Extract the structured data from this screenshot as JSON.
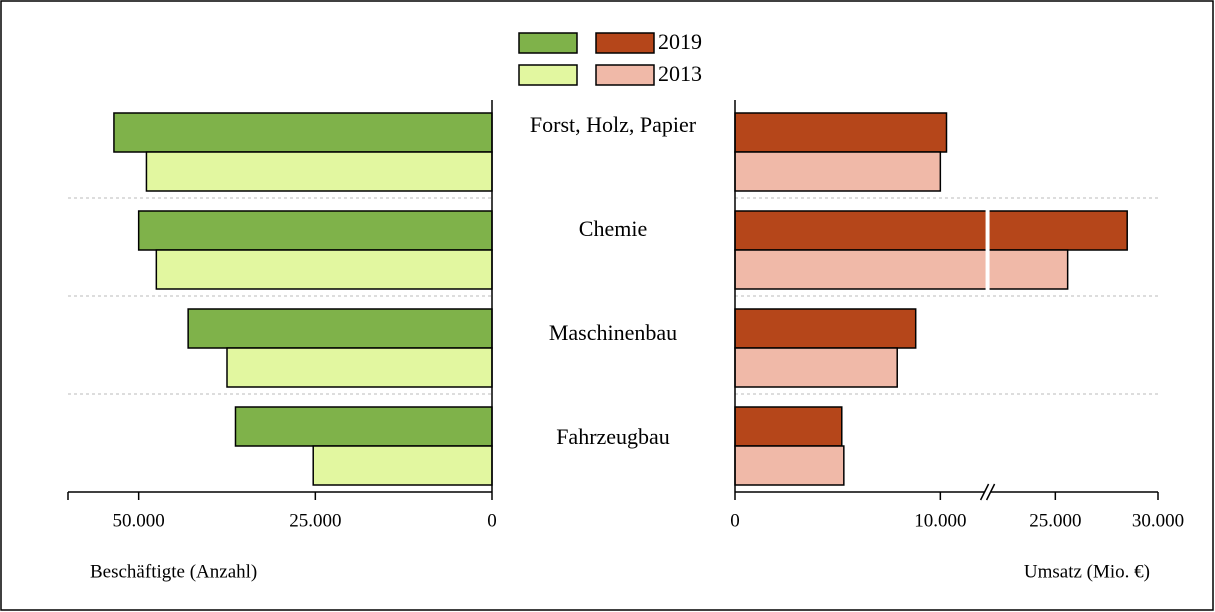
{
  "chart_data": [
    {
      "type": "bar",
      "orientation": "horizontal",
      "reversed": true,
      "categories": [
        "Forst, Holz, Papier",
        "Chemie",
        "Maschinenbau",
        "Fahrzeugbau"
      ],
      "series": [
        {
          "color": "#7fb24a",
          "values": [
            53500,
            50000,
            43000,
            36300
          ]
        },
        {
          "color": "#e2f7a0",
          "values": [
            48900,
            47500,
            37500,
            25300
          ]
        }
      ],
      "xlabel": "Beschäftigte (Anzahl)",
      "xlim": [
        0,
        60000
      ],
      "xticks": [
        0,
        {
          "value": 25000,
          "label": "25.000"
        },
        {
          "value": 50000,
          "label": "50.000"
        }
      ],
      "grid": true
    },
    {
      "type": "bar",
      "orientation": "horizontal",
      "series": [
        {
          "name": "2019",
          "color": "#b5461a",
          "values": [
            10300,
            28500,
            8800,
            5200
          ]
        },
        {
          "name": "2013",
          "color": "#f0b9a8",
          "values": [
            10000,
            25600,
            7900,
            5300
          ]
        }
      ],
      "xlabel": "Umsatz (Mio. €)",
      "xlim": [
        0,
        30000
      ],
      "axis_break": [
        12300,
        21700
      ],
      "xticks": [
        0,
        {
          "value": 10000,
          "label": "10.000"
        },
        {
          "value": 25000,
          "label": "25.000"
        },
        {
          "value": 30000,
          "label": "30.000"
        }
      ],
      "grid": true,
      "legend": "top"
    }
  ]
}
